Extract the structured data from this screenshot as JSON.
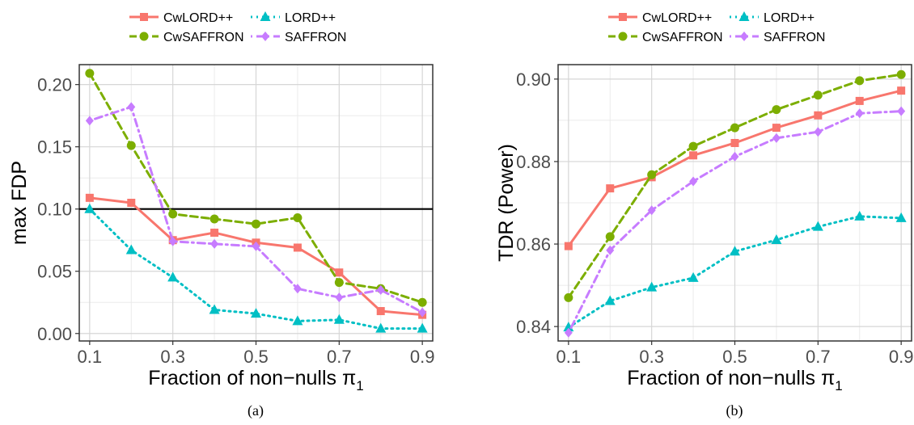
{
  "chart_data": [
    {
      "type": "line",
      "panel_caption": "(a)",
      "xlabel": "Fraction of non−nulls π",
      "xlabel_sub": "1",
      "ylabel": "max FDP",
      "x": [
        0.1,
        0.2,
        0.3,
        0.4,
        0.5,
        0.6,
        0.7,
        0.8,
        0.9
      ],
      "xticks": [
        "0.1",
        "0.3",
        "0.5",
        "0.7",
        "0.9"
      ],
      "xlim": [
        0.075,
        0.925
      ],
      "yticks": [
        "0.00",
        "0.05",
        "0.10",
        "0.15",
        "0.20"
      ],
      "ylim": [
        -0.006,
        0.216
      ],
      "reference_line": 0.1,
      "legend_position": "top",
      "grid": true,
      "series": [
        {
          "name": "CwLORD++",
          "color": "#F8766D",
          "marker": "square",
          "dash": "solid",
          "values": [
            0.109,
            0.105,
            0.075,
            0.081,
            0.073,
            0.069,
            0.049,
            0.018,
            0.015
          ]
        },
        {
          "name": "LORD++",
          "color": "#00BFC4",
          "marker": "triangle",
          "dash": "dotted",
          "values": [
            0.1,
            0.067,
            0.045,
            0.019,
            0.016,
            0.01,
            0.011,
            0.004,
            0.004
          ]
        },
        {
          "name": "CwSAFFRON",
          "color": "#7CAE00",
          "marker": "circle",
          "dash": "dashed",
          "values": [
            0.209,
            0.151,
            0.096,
            0.092,
            0.088,
            0.093,
            0.041,
            0.036,
            0.025
          ]
        },
        {
          "name": "SAFFRON",
          "color": "#C77CFF",
          "marker": "diamond",
          "dash": "dotdash",
          "values": [
            0.171,
            0.182,
            0.074,
            0.072,
            0.07,
            0.036,
            0.029,
            0.035,
            0.017
          ]
        }
      ]
    },
    {
      "type": "line",
      "panel_caption": "(b)",
      "xlabel": "Fraction of non−nulls π",
      "xlabel_sub": "1",
      "ylabel": "TDR (Power)",
      "x": [
        0.1,
        0.2,
        0.3,
        0.4,
        0.5,
        0.6,
        0.7,
        0.8,
        0.9
      ],
      "xticks": [
        "0.1",
        "0.3",
        "0.5",
        "0.7",
        "0.9"
      ],
      "xlim": [
        0.075,
        0.925
      ],
      "yticks": [
        "0.84",
        "0.86",
        "0.88",
        "0.90"
      ],
      "ylim": [
        0.8365,
        0.9035
      ],
      "legend_position": "top",
      "grid": true,
      "series": [
        {
          "name": "CwLORD++",
          "color": "#F8766D",
          "marker": "square",
          "dash": "solid",
          "values": [
            0.8595,
            0.8735,
            0.8762,
            0.8815,
            0.8845,
            0.8882,
            0.8912,
            0.8947,
            0.8972
          ]
        },
        {
          "name": "LORD++",
          "color": "#00BFC4",
          "marker": "triangle",
          "dash": "dotted",
          "values": [
            0.8398,
            0.8462,
            0.8495,
            0.8518,
            0.8582,
            0.861,
            0.8642,
            0.8667,
            0.8663
          ]
        },
        {
          "name": "CwSAFFRON",
          "color": "#7CAE00",
          "marker": "circle",
          "dash": "dashed",
          "values": [
            0.847,
            0.8618,
            0.8768,
            0.8837,
            0.8882,
            0.8926,
            0.8961,
            0.8996,
            0.9011
          ]
        },
        {
          "name": "SAFFRON",
          "color": "#C77CFF",
          "marker": "diamond",
          "dash": "dotdash",
          "values": [
            0.8385,
            0.8585,
            0.8682,
            0.8752,
            0.8812,
            0.8857,
            0.8872,
            0.8917,
            0.8922
          ]
        }
      ]
    }
  ]
}
